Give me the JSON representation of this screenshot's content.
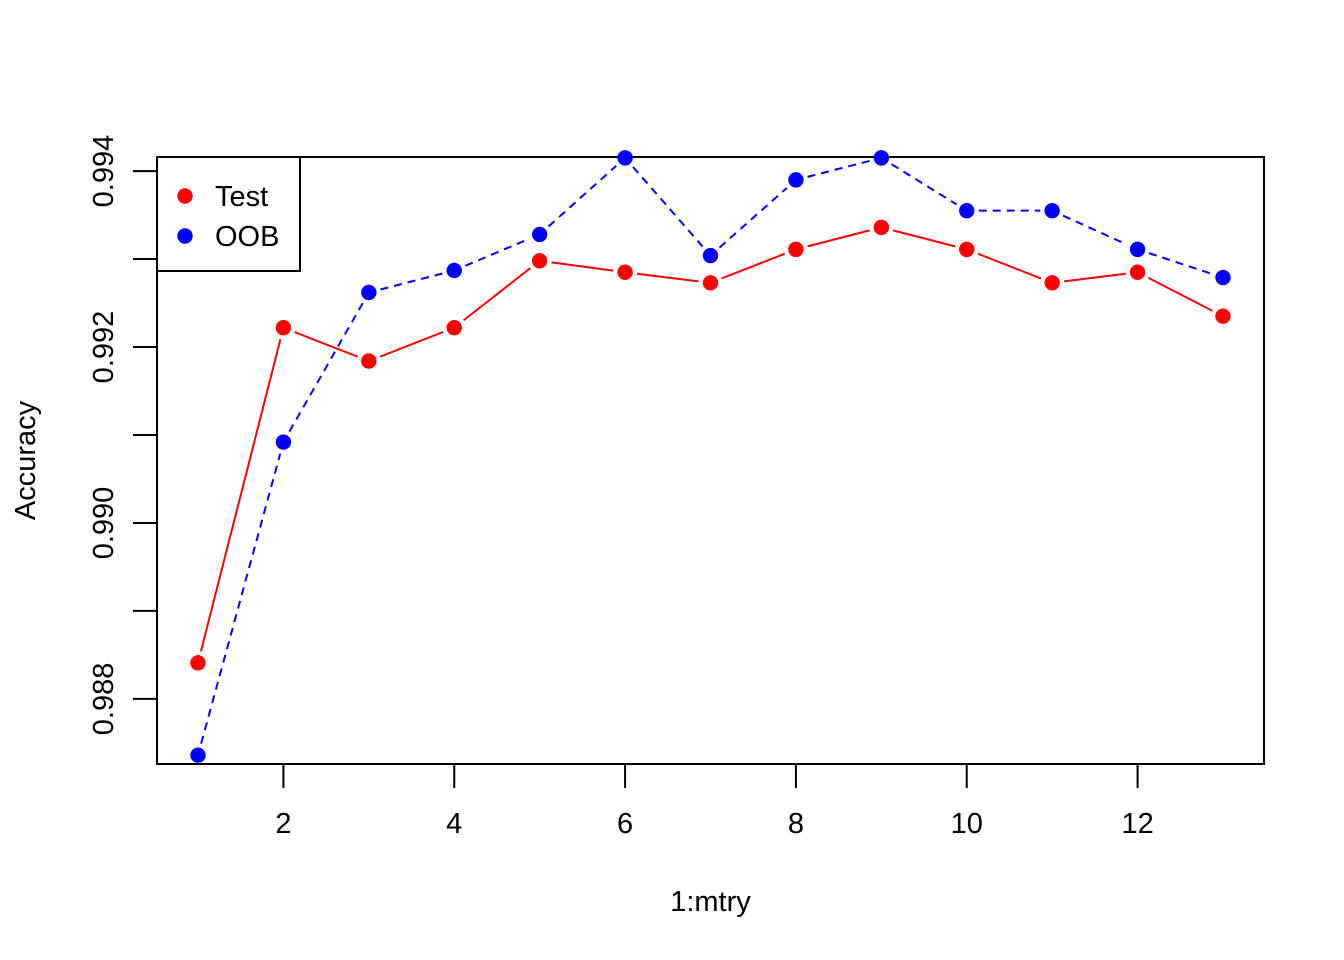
{
  "chart_data": {
    "type": "line",
    "title": "",
    "xlabel": "1:mtry",
    "ylabel": "Accuracy",
    "x": [
      1,
      2,
      3,
      4,
      5,
      6,
      7,
      8,
      9,
      10,
      11,
      12,
      13
    ],
    "xlim": [
      0.52,
      13.48
    ],
    "ylim": [
      0.98726,
      0.99416
    ],
    "x_ticks": [
      2,
      4,
      6,
      8,
      10,
      12
    ],
    "x_tick_labels": [
      "2",
      "4",
      "6",
      "8",
      "10",
      "12"
    ],
    "y_ticks": [
      0.988,
      0.989,
      0.99,
      0.991,
      0.992,
      0.993,
      0.994
    ],
    "y_tick_labels": [
      "0.988",
      "",
      "0.990",
      "",
      "0.992",
      "",
      "0.994"
    ],
    "grid": false,
    "legend": {
      "position": "top-left",
      "entries": [
        "Test",
        "OOB"
      ]
    },
    "series": [
      {
        "name": "Test",
        "color": "#ff0000",
        "line_style": "solid",
        "marker": "filled-circle",
        "values": [
          0.98841,
          0.99222,
          0.99184,
          0.99222,
          0.99298,
          0.99285,
          0.99273,
          0.99311,
          0.99336,
          0.99311,
          0.99273,
          0.99285,
          0.99235
        ]
      },
      {
        "name": "OOB",
        "color": "#0000ff",
        "line_style": "dashed",
        "marker": "filled-circle",
        "values": [
          0.98736,
          0.99092,
          0.99262,
          0.99287,
          0.99328,
          0.99415,
          0.99304,
          0.9939,
          0.99415,
          0.99355,
          0.99355,
          0.99311,
          0.99279
        ]
      }
    ]
  }
}
